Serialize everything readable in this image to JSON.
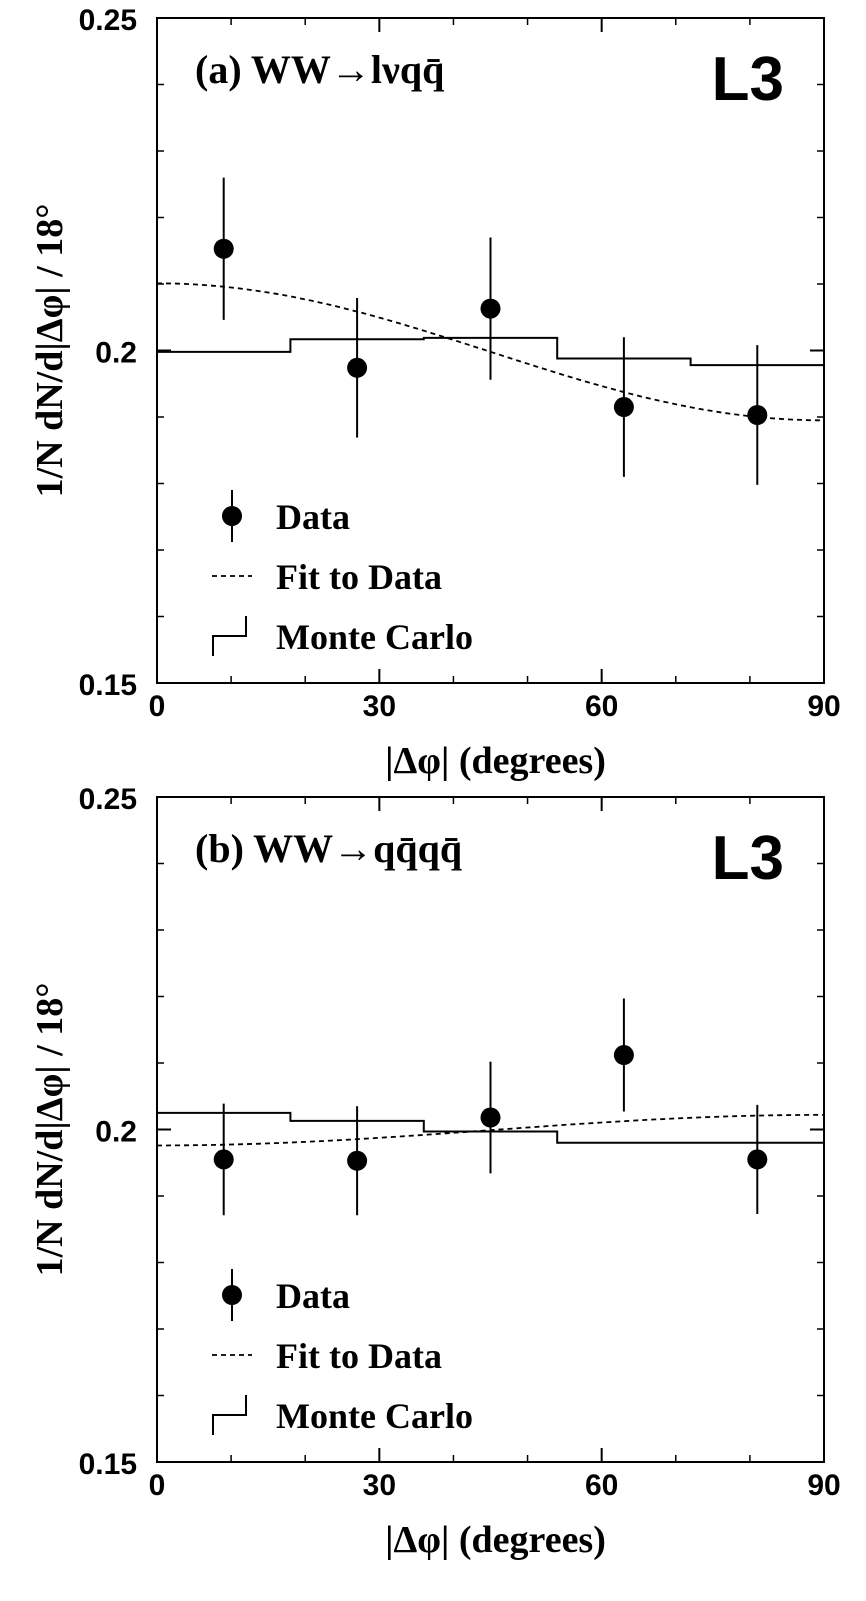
{
  "chart_data": [
    {
      "type": "scatter",
      "panel": "(a)",
      "title": "(a) WW→lνqq̄",
      "experiment": "L3",
      "xlabel": "|Δφ|  (degrees)",
      "ylabel": "1/N dN/d|Δφ|  / 18°",
      "xlim": [
        0,
        90
      ],
      "ylim": [
        0.15,
        0.25
      ],
      "xticks": [
        "0",
        "30",
        "60",
        "90"
      ],
      "yticks": [
        "0.15",
        "0.2",
        "0.25"
      ],
      "legend": {
        "placement": "bottom-left",
        "entries": [
          "Data",
          "Fit to Data",
          "Monte Carlo"
        ]
      },
      "series": [
        {
          "name": "Data",
          "kind": "points-with-errors",
          "x": [
            9,
            27,
            45,
            63,
            81
          ],
          "y": [
            0.2153,
            0.1974,
            0.2063,
            0.1915,
            0.1903
          ],
          "yerr": [
            0.0107,
            0.0105,
            0.0107,
            0.0105,
            0.0105
          ]
        },
        {
          "name": "Fit to Data",
          "kind": "curve",
          "function": "cosine",
          "mean": 0.1998,
          "amplitude": 0.0103
        },
        {
          "name": "Monte Carlo",
          "kind": "histogram",
          "bin_edges": [
            0,
            18,
            36,
            54,
            72,
            90
          ],
          "values": [
            0.1998,
            0.2017,
            0.2019,
            0.1988,
            0.1978
          ]
        }
      ]
    },
    {
      "type": "scatter",
      "panel": "(b)",
      "title": "(b) WW→qq̄qq̄",
      "experiment": "L3",
      "xlabel": "|Δφ|  (degrees)",
      "ylabel": "1/N dN/d|Δφ|  / 18°",
      "xlim": [
        0,
        90
      ],
      "ylim": [
        0.15,
        0.25
      ],
      "xticks": [
        "0",
        "30",
        "60",
        "90"
      ],
      "yticks": [
        "0.15",
        "0.2",
        "0.25"
      ],
      "legend": {
        "placement": "bottom-left",
        "entries": [
          "Data",
          "Fit to Data",
          "Monte Carlo"
        ]
      },
      "series": [
        {
          "name": "Data",
          "kind": "points-with-errors",
          "x": [
            9,
            27,
            45,
            63,
            81
          ],
          "y": [
            0.1955,
            0.1953,
            0.2018,
            0.2112,
            0.1955
          ],
          "yerr": [
            0.0084,
            0.0082,
            0.0084,
            0.0085,
            0.0082
          ]
        },
        {
          "name": "Fit to Data",
          "kind": "curve",
          "function": "cosine",
          "mean": 0.1999,
          "amplitude": -0.0023
        },
        {
          "name": "Monte Carlo",
          "kind": "histogram",
          "bin_edges": [
            0,
            18,
            36,
            54,
            72,
            90
          ],
          "values": [
            0.2025,
            0.2013,
            0.1997,
            0.198,
            0.198
          ]
        }
      ]
    }
  ]
}
